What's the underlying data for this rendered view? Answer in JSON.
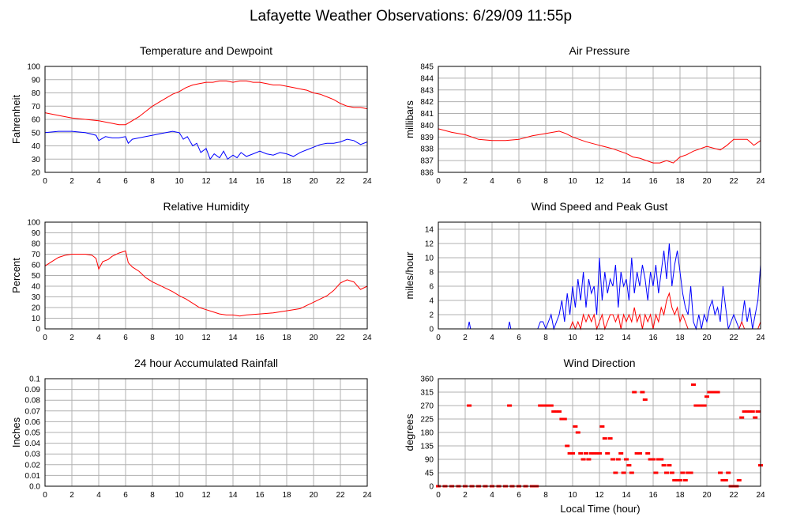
{
  "page": {
    "title": "Lafayette Weather Observations: 6/29/09 11:55p",
    "xlabel_bottom": "Local Time (hour)"
  },
  "colors": {
    "red": "#ff0000",
    "blue": "#0000ff",
    "grid": "#b0b0b0",
    "axis": "#000000"
  },
  "chart_data": [
    {
      "id": "temperature",
      "type": "line",
      "title": "Temperature and Dewpoint",
      "xlabel": "",
      "ylabel": "Fahrenheit",
      "xlim": [
        0,
        24
      ],
      "ylim": [
        20,
        100
      ],
      "xticks": [
        0,
        2,
        4,
        6,
        8,
        10,
        12,
        14,
        16,
        18,
        20,
        22,
        24
      ],
      "yticks": [
        20,
        30,
        40,
        50,
        60,
        70,
        80,
        90,
        100
      ],
      "grid": true,
      "series": [
        {
          "color": "#ff0000",
          "x": [
            0,
            1,
            2,
            3,
            4,
            5,
            5.5,
            6,
            6.5,
            7,
            7.5,
            8,
            8.5,
            9,
            9.5,
            10,
            10.5,
            11,
            11.5,
            12,
            12.5,
            13,
            13.5,
            14,
            14.5,
            15,
            15.5,
            16,
            16.5,
            17,
            17.5,
            18,
            18.5,
            19,
            19.5,
            20,
            20.5,
            21,
            21.5,
            22,
            22.5,
            23,
            23.5,
            24
          ],
          "y": [
            65,
            63,
            61,
            60,
            59,
            57,
            56,
            56,
            59,
            62,
            66,
            70,
            73,
            76,
            79,
            81,
            84,
            86,
            87,
            88,
            88,
            89,
            89,
            88,
            89,
            89,
            88,
            88,
            87,
            86,
            86,
            85,
            84,
            83,
            82,
            80,
            79,
            77,
            75,
            72,
            70,
            69,
            69,
            68
          ]
        },
        {
          "color": "#0000ff",
          "x": [
            0,
            1,
            2,
            3,
            3.8,
            4,
            4.5,
            5,
            5.5,
            6,
            6.2,
            6.5,
            7,
            7.5,
            8,
            8.5,
            9,
            9.5,
            10,
            10.3,
            10.6,
            11,
            11.3,
            11.6,
            12,
            12.3,
            12.6,
            13,
            13.3,
            13.6,
            14,
            14.3,
            14.6,
            15,
            15.5,
            16,
            16.5,
            17,
            17.5,
            18,
            18.5,
            19,
            19.5,
            20,
            20.5,
            21,
            21.5,
            22,
            22.5,
            23,
            23.5,
            24
          ],
          "y": [
            50,
            51,
            51,
            50,
            48,
            44,
            47,
            46,
            46,
            47,
            42,
            45,
            46,
            47,
            48,
            49,
            50,
            51,
            50,
            45,
            47,
            40,
            42,
            35,
            38,
            30,
            34,
            31,
            36,
            30,
            33,
            31,
            35,
            32,
            34,
            36,
            34,
            33,
            35,
            34,
            32,
            35,
            37,
            39,
            41,
            42,
            42,
            43,
            45,
            44,
            41,
            43
          ]
        }
      ]
    },
    {
      "id": "pressure",
      "type": "line",
      "title": "Air Pressure",
      "xlabel": "",
      "ylabel": "millibars",
      "xlim": [
        0,
        24
      ],
      "ylim": [
        836,
        845
      ],
      "xticks": [
        0,
        2,
        4,
        6,
        8,
        10,
        12,
        14,
        16,
        18,
        20,
        22,
        24
      ],
      "yticks": [
        836,
        837,
        838,
        839,
        840,
        841,
        842,
        843,
        844,
        845
      ],
      "grid": true,
      "series": [
        {
          "color": "#ff0000",
          "x": [
            0,
            1,
            2,
            3,
            4,
            5,
            6,
            7,
            8,
            9,
            9.5,
            10,
            11,
            12,
            13,
            14,
            14.5,
            15,
            16,
            16.5,
            17,
            17.5,
            18,
            18.5,
            19,
            19.5,
            20,
            21,
            21.5,
            22,
            23,
            23.5,
            24
          ],
          "y": [
            839.7,
            839.4,
            839.2,
            838.8,
            838.7,
            838.7,
            838.8,
            839.1,
            839.3,
            839.5,
            839.3,
            839.0,
            838.6,
            838.3,
            838.0,
            837.6,
            837.3,
            837.2,
            836.8,
            836.8,
            837.0,
            836.8,
            837.3,
            837.5,
            837.8,
            838.0,
            838.2,
            837.9,
            838.3,
            838.8,
            838.8,
            838.3,
            838.7
          ]
        }
      ]
    },
    {
      "id": "humidity",
      "type": "line",
      "title": "Relative Humidity",
      "xlabel": "",
      "ylabel": "Percent",
      "xlim": [
        0,
        24
      ],
      "ylim": [
        0,
        100
      ],
      "xticks": [
        0,
        2,
        4,
        6,
        8,
        10,
        12,
        14,
        16,
        18,
        20,
        22,
        24
      ],
      "yticks": [
        0,
        10,
        20,
        30,
        40,
        50,
        60,
        70,
        80,
        90,
        100
      ],
      "grid": true,
      "series": [
        {
          "color": "#ff0000",
          "x": [
            0,
            0.5,
            1,
            1.5,
            2,
            2.5,
            3,
            3.5,
            3.8,
            4,
            4.3,
            4.7,
            5,
            5.5,
            6,
            6.2,
            6.5,
            7,
            7.5,
            8,
            8.5,
            9,
            9.5,
            10,
            10.5,
            11,
            11.5,
            12,
            12.5,
            13,
            13.5,
            14,
            14.5,
            15,
            16,
            17,
            18,
            19,
            19.5,
            20,
            20.5,
            21,
            21.5,
            22,
            22.5,
            23,
            23.5,
            24
          ],
          "y": [
            59,
            63,
            67,
            69,
            70,
            70,
            70,
            69,
            66,
            56,
            63,
            65,
            68,
            71,
            73,
            62,
            58,
            54,
            48,
            44,
            41,
            38,
            35,
            31,
            28,
            24,
            20,
            18,
            16,
            14,
            13,
            13,
            12,
            13,
            14,
            15,
            17,
            19,
            22,
            25,
            28,
            31,
            36,
            43,
            46,
            44,
            37,
            40
          ]
        }
      ]
    },
    {
      "id": "wind",
      "type": "line",
      "title": "Wind Speed and Peak Gust",
      "xlabel": "",
      "ylabel": "miles/hour",
      "xlim": [
        0,
        24
      ],
      "ylim": [
        0,
        15
      ],
      "xticks": [
        0,
        2,
        4,
        6,
        8,
        10,
        12,
        14,
        16,
        18,
        20,
        22,
        24
      ],
      "yticks": [
        0,
        2,
        4,
        6,
        8,
        10,
        12,
        14
      ],
      "grid": true,
      "series": [
        {
          "color": "#0000ff",
          "x": [
            0,
            2.2,
            2.3,
            2.4,
            5.2,
            5.3,
            5.4,
            7.4,
            7.6,
            7.8,
            8.0,
            8.2,
            8.4,
            8.6,
            8.8,
            9.0,
            9.2,
            9.4,
            9.6,
            9.8,
            10.0,
            10.2,
            10.4,
            10.6,
            10.8,
            11.0,
            11.2,
            11.4,
            11.6,
            11.8,
            12.0,
            12.2,
            12.4,
            12.6,
            12.8,
            13.0,
            13.2,
            13.4,
            13.6,
            13.8,
            14.0,
            14.2,
            14.4,
            14.6,
            14.8,
            15.0,
            15.2,
            15.4,
            15.6,
            15.8,
            16.0,
            16.2,
            16.4,
            16.6,
            16.8,
            17.0,
            17.2,
            17.4,
            17.6,
            17.8,
            18.0,
            18.2,
            18.4,
            18.6,
            18.8,
            19.0,
            19.2,
            19.4,
            19.6,
            19.8,
            20.0,
            20.2,
            20.4,
            20.6,
            20.8,
            21.0,
            21.2,
            21.4,
            21.6,
            21.8,
            22.0,
            22.2,
            22.4,
            22.6,
            22.8,
            23.0,
            23.2,
            23.4,
            23.6,
            23.8,
            24.0
          ],
          "y": [
            0,
            0,
            1,
            0,
            0,
            1,
            0,
            0,
            1,
            1,
            0,
            1,
            2,
            0,
            1,
            2,
            4,
            1,
            5,
            2,
            6,
            3,
            7,
            4,
            8,
            3,
            7,
            5,
            6,
            2,
            10,
            4,
            8,
            5,
            7,
            6,
            9,
            3,
            8,
            6,
            7,
            4,
            10,
            5,
            8,
            6,
            9,
            7,
            4,
            8,
            6,
            9,
            5,
            8,
            11,
            7,
            12,
            6,
            9,
            11,
            8,
            5,
            3,
            2,
            6,
            1,
            0,
            2,
            0,
            2,
            1,
            3,
            4,
            2,
            3,
            1,
            6,
            3,
            0,
            1,
            2,
            1,
            0,
            1,
            4,
            1,
            3,
            0,
            2,
            4,
            9
          ]
        },
        {
          "color": "#ff0000",
          "x": [
            0,
            9.4,
            9.6,
            9.8,
            10.0,
            10.2,
            10.4,
            10.6,
            10.8,
            11.0,
            11.2,
            11.4,
            11.6,
            11.8,
            12.0,
            12.2,
            12.4,
            12.6,
            12.8,
            13.0,
            13.2,
            13.4,
            13.6,
            13.8,
            14.0,
            14.2,
            14.4,
            14.6,
            14.8,
            15.0,
            15.2,
            15.4,
            15.6,
            15.8,
            16.0,
            16.2,
            16.4,
            16.6,
            16.8,
            17.0,
            17.2,
            17.4,
            17.6,
            17.8,
            18.0,
            18.2,
            18.4,
            18.6,
            19.0,
            22.4,
            22.6,
            22.8,
            23.8,
            24.0
          ],
          "y": [
            0,
            0,
            0,
            0,
            1,
            0,
            1,
            0,
            2,
            1,
            2,
            1,
            2,
            0,
            1,
            2,
            0,
            1,
            2,
            2,
            1,
            2,
            0,
            2,
            1,
            2,
            1,
            3,
            1,
            2,
            0,
            2,
            1,
            2,
            0,
            2,
            1,
            3,
            2,
            4,
            5,
            3,
            2,
            3,
            1,
            2,
            1,
            0,
            0,
            0,
            1,
            0,
            0,
            1
          ]
        }
      ]
    },
    {
      "id": "rainfall",
      "type": "line",
      "title": "24 hour Accumulated Rainfall",
      "xlabel": "",
      "ylabel": "Inches",
      "xlim": [
        0,
        24
      ],
      "ylim": [
        0,
        0.1
      ],
      "xticks": [
        0,
        2,
        4,
        6,
        8,
        10,
        12,
        14,
        16,
        18,
        20,
        22,
        24
      ],
      "yticks": [
        "0.0",
        "0.01",
        "0.02",
        "0.03",
        "0.04",
        "0.05",
        "0.06",
        "0.07",
        "0.08",
        "0.09",
        "0.1"
      ],
      "grid": true,
      "series": [
        {
          "color": "#ff0000",
          "x": [
            0,
            24
          ],
          "y": [
            0,
            0
          ]
        }
      ]
    },
    {
      "id": "direction",
      "type": "scatter",
      "title": "Wind Direction",
      "xlabel": "Local Time (hour)",
      "ylabel": "degrees",
      "xlim": [
        0,
        24
      ],
      "ylim": [
        0,
        360
      ],
      "xticks": [
        0,
        2,
        4,
        6,
        8,
        10,
        12,
        14,
        16,
        18,
        20,
        22,
        24
      ],
      "yticks": [
        0,
        45,
        90,
        135,
        180,
        225,
        270,
        315,
        360
      ],
      "grid": true,
      "series": [
        {
          "color": "#ff0000",
          "x": [
            0,
            0.5,
            1,
            1.5,
            2,
            2.3,
            2.5,
            3,
            3.5,
            4,
            4.5,
            5,
            5.3,
            5.5,
            6,
            6.5,
            7,
            7.3,
            7.6,
            7.8,
            8.0,
            8.2,
            8.4,
            8.6,
            8.8,
            9.0,
            9.2,
            9.4,
            9.6,
            9.8,
            10.0,
            10.2,
            10.4,
            10.6,
            10.8,
            11.0,
            11.2,
            11.4,
            11.6,
            11.8,
            12.0,
            12.2,
            12.4,
            12.6,
            12.8,
            13.0,
            13.2,
            13.4,
            13.6,
            13.8,
            14.0,
            14.2,
            14.4,
            14.6,
            14.8,
            15.0,
            15.2,
            15.4,
            15.6,
            15.8,
            16.0,
            16.2,
            16.4,
            16.6,
            16.8,
            17.0,
            17.2,
            17.4,
            17.6,
            17.8,
            18.0,
            18.2,
            18.4,
            18.6,
            18.8,
            19.0,
            19.2,
            19.4,
            19.6,
            19.8,
            20.0,
            20.2,
            20.4,
            20.6,
            20.8,
            21.0,
            21.2,
            21.4,
            21.6,
            21.8,
            22.0,
            22.2,
            22.4,
            22.6,
            22.8,
            23.0,
            23.2,
            23.4,
            23.6,
            23.8,
            24.0
          ],
          "y": [
            0,
            0,
            0,
            0,
            0,
            270,
            0,
            0,
            0,
            0,
            0,
            0,
            270,
            0,
            0,
            0,
            0,
            0,
            270,
            270,
            270,
            270,
            270,
            250,
            250,
            250,
            225,
            225,
            135,
            110,
            110,
            200,
            180,
            110,
            90,
            110,
            90,
            110,
            110,
            110,
            110,
            200,
            160,
            110,
            160,
            90,
            45,
            90,
            110,
            45,
            90,
            70,
            45,
            315,
            110,
            110,
            315,
            290,
            110,
            90,
            90,
            45,
            90,
            90,
            70,
            45,
            70,
            45,
            20,
            20,
            20,
            45,
            20,
            45,
            45,
            340,
            270,
            270,
            270,
            270,
            300,
            315,
            315,
            315,
            315,
            45,
            20,
            20,
            45,
            0,
            0,
            0,
            20,
            230,
            250,
            250,
            250,
            250,
            230,
            250,
            70
          ]
        }
      ]
    }
  ]
}
